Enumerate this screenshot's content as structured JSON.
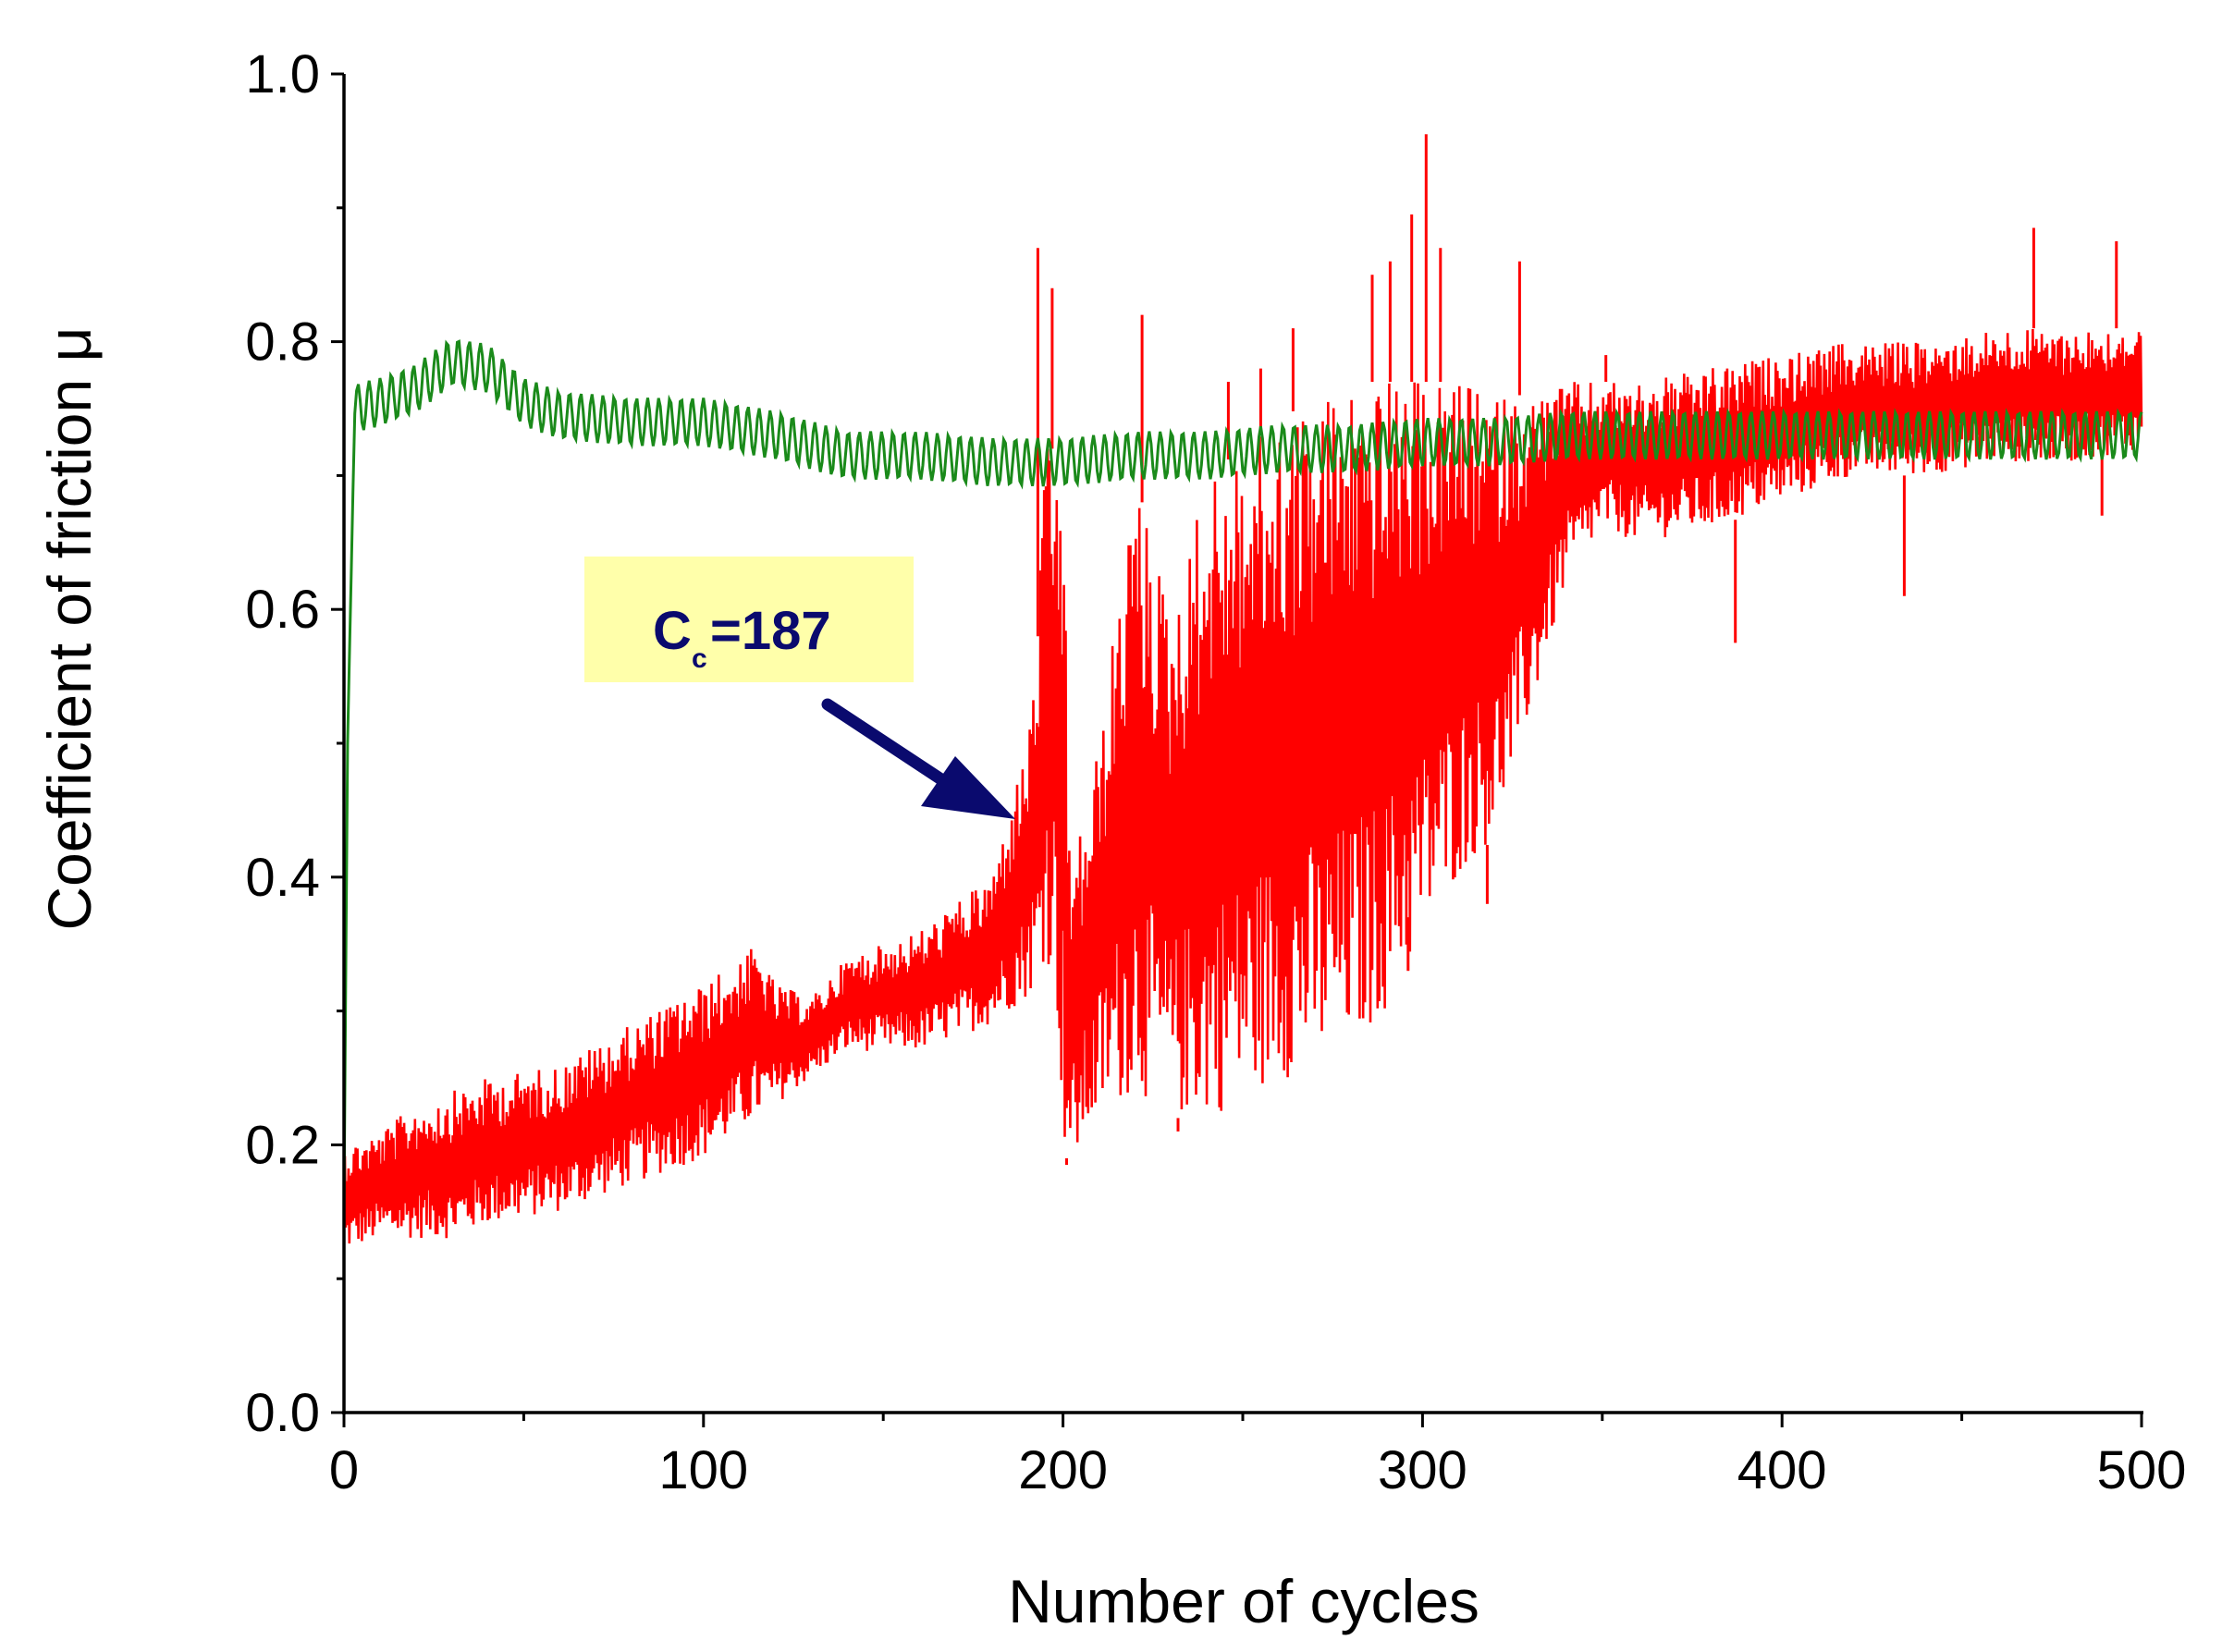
{
  "chart_data": {
    "type": "line",
    "title": "",
    "xlabel": "Number of cycles",
    "ylabel": "Coefficient of friction μ",
    "xlim": [
      0,
      500
    ],
    "ylim": [
      0,
      1.0
    ],
    "x_ticks": [
      0,
      100,
      200,
      300,
      400,
      500
    ],
    "x_tick_labels": [
      "0",
      "100",
      "200",
      "300",
      "400",
      "500"
    ],
    "y_ticks": [
      0.0,
      0.2,
      0.4,
      0.6,
      0.8,
      1.0
    ],
    "y_tick_labels": [
      "0.0",
      "0.2",
      "0.4",
      "0.6",
      "0.8",
      "1.0"
    ],
    "grid": false,
    "legend": "none",
    "series": [
      {
        "name": "green",
        "color": "#1a8a1a",
        "note": "oscillating trace; mean and band in data units",
        "x": [
          0,
          1,
          3,
          10,
          20,
          30,
          40,
          50,
          60,
          80,
          100,
          120,
          140,
          160,
          180,
          200,
          220,
          240,
          260,
          280,
          300,
          320,
          340,
          360,
          380,
          400,
          420,
          440,
          460,
          480,
          500
        ],
        "mean": [
          0.15,
          0.5,
          0.75,
          0.755,
          0.765,
          0.785,
          0.78,
          0.755,
          0.745,
          0.74,
          0.74,
          0.73,
          0.715,
          0.715,
          0.71,
          0.71,
          0.715,
          0.715,
          0.72,
          0.72,
          0.725,
          0.725,
          0.73,
          0.73,
          0.73,
          0.73,
          0.73,
          0.73,
          0.73,
          0.73,
          0.73
        ],
        "amplitude": 0.018
      },
      {
        "name": "red",
        "color": "#ff0000",
        "note": "noisy trace; lower/upper envelope in data units",
        "x": [
          0,
          10,
          20,
          30,
          40,
          60,
          80,
          100,
          110,
          115,
          120,
          130,
          140,
          160,
          180,
          185,
          190,
          193,
          195,
          198,
          200,
          202,
          210,
          220,
          230,
          240,
          250,
          260,
          270,
          280,
          290,
          300,
          310,
          320,
          330,
          340,
          350,
          360,
          380,
          400,
          420,
          440,
          460,
          480,
          500
        ],
        "lower": [
          0.12,
          0.13,
          0.13,
          0.13,
          0.14,
          0.15,
          0.17,
          0.19,
          0.21,
          0.22,
          0.23,
          0.25,
          0.27,
          0.27,
          0.29,
          0.3,
          0.31,
          0.32,
          0.34,
          0.32,
          0.2,
          0.18,
          0.22,
          0.24,
          0.22,
          0.22,
          0.23,
          0.25,
          0.25,
          0.27,
          0.3,
          0.35,
          0.4,
          0.43,
          0.52,
          0.62,
          0.66,
          0.65,
          0.66,
          0.68,
          0.7,
          0.7,
          0.71,
          0.71,
          0.72
        ],
        "upper": [
          0.2,
          0.21,
          0.23,
          0.24,
          0.25,
          0.26,
          0.29,
          0.32,
          0.34,
          0.35,
          0.32,
          0.31,
          0.34,
          0.36,
          0.4,
          0.45,
          0.5,
          0.58,
          0.72,
          0.72,
          0.7,
          0.4,
          0.5,
          0.7,
          0.6,
          0.7,
          0.72,
          0.74,
          0.76,
          0.77,
          0.77,
          0.77,
          0.77,
          0.76,
          0.76,
          0.77,
          0.77,
          0.77,
          0.78,
          0.79,
          0.8,
          0.8,
          0.81,
          0.81,
          0.81
        ],
        "spikes": [
          {
            "x": 193,
            "y": 0.87
          },
          {
            "x": 197,
            "y": 0.84
          },
          {
            "x": 222,
            "y": 0.82
          },
          {
            "x": 246,
            "y": 0.77
          },
          {
            "x": 255,
            "y": 0.78
          },
          {
            "x": 264,
            "y": 0.81
          },
          {
            "x": 286,
            "y": 0.85
          },
          {
            "x": 291,
            "y": 0.86
          },
          {
            "x": 297,
            "y": 0.895
          },
          {
            "x": 301,
            "y": 0.955
          },
          {
            "x": 305,
            "y": 0.87
          },
          {
            "x": 327,
            "y": 0.86
          },
          {
            "x": 351,
            "y": 0.79
          },
          {
            "x": 470,
            "y": 0.885
          },
          {
            "x": 493,
            "y": 0.875
          }
        ],
        "dips": [
          {
            "x": 201,
            "y": 0.185
          },
          {
            "x": 232,
            "y": 0.21
          },
          {
            "x": 285,
            "y": 0.285
          },
          {
            "x": 296,
            "y": 0.37
          },
          {
            "x": 318,
            "y": 0.38
          },
          {
            "x": 387,
            "y": 0.575
          },
          {
            "x": 434,
            "y": 0.61
          },
          {
            "x": 489,
            "y": 0.67
          }
        ]
      }
    ],
    "annotations": [
      {
        "text_main": "C",
        "text_sub": "c",
        "text_value": "=187",
        "background": "#ffffaa",
        "arrow_color": "#0a0a6e",
        "points_to_x": 187,
        "points_to_y": 0.44
      }
    ]
  }
}
